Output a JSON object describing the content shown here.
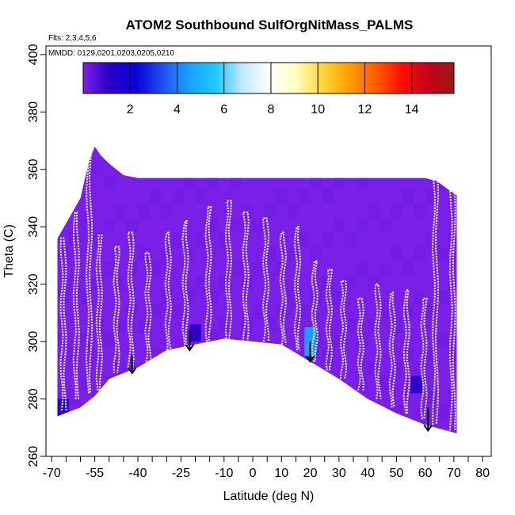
{
  "chart_data": {
    "type": "heatmap",
    "title": "ATOM2 Southbound SulfOrgNitMass_PALMS",
    "flights_label": "Flts: 2,3,4,5,6",
    "dates_label": "MMDD: 0129,0201,0203,0205,0210",
    "xlabel": "Latitude (deg N)",
    "ylabel": "Theta (C)",
    "xlim": [
      -72,
      83
    ],
    "ylim": [
      260,
      403
    ],
    "x_ticks": [
      -70,
      -55,
      -40,
      -25,
      -10,
      0,
      10,
      20,
      30,
      40,
      50,
      60,
      70,
      80
    ],
    "x_minor_ticks": [
      -65,
      -60,
      -50,
      -45,
      -35,
      -30,
      -20,
      -15,
      -5,
      5,
      15,
      25,
      35,
      45,
      55,
      65,
      75
    ],
    "y_ticks": [
      260,
      280,
      300,
      320,
      340,
      360,
      380,
      400
    ],
    "colorbar": {
      "min": 0,
      "max": 15.8,
      "ticks": [
        2,
        4,
        6,
        8,
        10,
        12,
        14
      ],
      "colors": [
        "#7a1fe8",
        "#2a00c8",
        "#0a00d8",
        "#2050f0",
        "#1aa0ff",
        "#20c8ff",
        "#bfe8ff",
        "#ffffff",
        "#ffffc0",
        "#ffd840",
        "#ffa000",
        "#ff6000",
        "#ff1000",
        "#c80018",
        "#9a1818"
      ]
    },
    "field": {
      "background_value": 0.5,
      "lower_boundary": [
        [
          -68,
          274
        ],
        [
          -60,
          277
        ],
        [
          -55,
          281
        ],
        [
          -50,
          287
        ],
        [
          -40,
          291
        ],
        [
          -30,
          297
        ],
        [
          -20,
          299
        ],
        [
          -10,
          301
        ],
        [
          0,
          300
        ],
        [
          10,
          299
        ],
        [
          20,
          293
        ],
        [
          30,
          287
        ],
        [
          40,
          280
        ],
        [
          50,
          275
        ],
        [
          60,
          271
        ],
        [
          71,
          268
        ]
      ],
      "upper_boundary": [
        [
          -68,
          336
        ],
        [
          -60,
          350
        ],
        [
          -57,
          363
        ],
        [
          -55,
          368
        ],
        [
          -53,
          365
        ],
        [
          -50,
          362
        ],
        [
          -45,
          358
        ],
        [
          -40,
          357
        ],
        [
          -30,
          357
        ],
        [
          -20,
          357
        ],
        [
          -10,
          357
        ],
        [
          0,
          357
        ],
        [
          10,
          357
        ],
        [
          20,
          357
        ],
        [
          30,
          357
        ],
        [
          40,
          357
        ],
        [
          50,
          357
        ],
        [
          60,
          357
        ],
        [
          64,
          356
        ],
        [
          68,
          353
        ],
        [
          71,
          351
        ]
      ],
      "enhanced_patches": [
        {
          "lat": -66,
          "theta": 277,
          "value": 1.5
        },
        {
          "lat": -41,
          "theta": 295,
          "value": 1.0
        },
        {
          "lat": -20,
          "theta": 303,
          "value": 1.2
        },
        {
          "lat": -7,
          "theta": 305,
          "value": 1.0
        },
        {
          "lat": 20,
          "theta": 302,
          "value": 4.5
        },
        {
          "lat": 20,
          "theta": 298,
          "value": 5.2
        },
        {
          "lat": 57,
          "theta": 285,
          "value": 1.2
        }
      ]
    },
    "profile_columns": [
      {
        "lat": -66.5,
        "min": 276,
        "max": 336
      },
      {
        "lat": -62,
        "min": 280,
        "max": 345
      },
      {
        "lat": -57.5,
        "min": 282,
        "max": 365
      },
      {
        "lat": -54,
        "min": 283,
        "max": 337
      },
      {
        "lat": -48,
        "min": 289,
        "max": 333
      },
      {
        "lat": -43,
        "min": 291,
        "max": 338
      },
      {
        "lat": -37,
        "min": 293,
        "max": 331
      },
      {
        "lat": -30,
        "min": 297,
        "max": 338
      },
      {
        "lat": -24,
        "min": 298,
        "max": 342
      },
      {
        "lat": -16,
        "min": 299,
        "max": 347
      },
      {
        "lat": -9,
        "min": 301,
        "max": 349
      },
      {
        "lat": -3,
        "min": 300,
        "max": 345
      },
      {
        "lat": 4,
        "min": 300,
        "max": 343
      },
      {
        "lat": 10,
        "min": 299,
        "max": 338
      },
      {
        "lat": 15,
        "min": 297,
        "max": 340
      },
      {
        "lat": 21,
        "min": 293,
        "max": 328
      },
      {
        "lat": 26,
        "min": 290,
        "max": 325
      },
      {
        "lat": 31,
        "min": 287,
        "max": 321
      },
      {
        "lat": 37,
        "min": 283,
        "max": 315
      },
      {
        "lat": 43,
        "min": 280,
        "max": 320
      },
      {
        "lat": 48,
        "min": 277,
        "max": 317
      },
      {
        "lat": 53,
        "min": 275,
        "max": 318
      },
      {
        "lat": 59,
        "min": 273,
        "max": 315
      },
      {
        "lat": 63,
        "min": 271,
        "max": 357
      },
      {
        "lat": 69,
        "min": 269,
        "max": 354
      }
    ],
    "arrows": [
      {
        "lat": -42,
        "theta_top": 295,
        "theta_tip": 289
      },
      {
        "lat": -22,
        "theta_top": 304,
        "theta_tip": 297
      },
      {
        "lat": 20,
        "theta_top": 300,
        "theta_tip": 293
      },
      {
        "lat": 61,
        "theta_top": 277,
        "theta_tip": 269
      }
    ]
  }
}
